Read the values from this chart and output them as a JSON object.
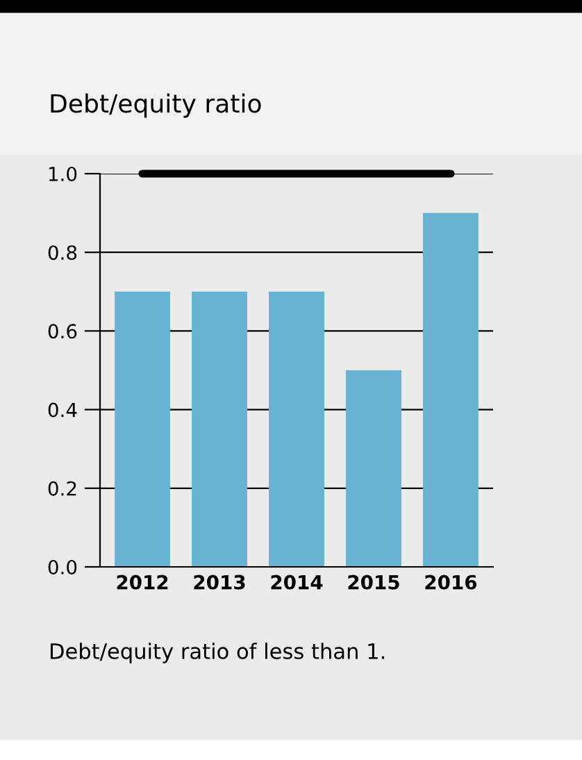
{
  "chart_data": {
    "type": "bar",
    "title": "Debt/equity ratio",
    "categories": [
      "2012",
      "2013",
      "2014",
      "2015",
      "2016"
    ],
    "values": [
      0.7,
      0.7,
      0.7,
      0.5,
      0.9
    ],
    "color": "#67b3d1",
    "ylim": [
      0,
      1.0
    ],
    "yticks": [
      {
        "value": 0,
        "label": "0.0"
      },
      {
        "value": 0.2,
        "label": "0.2"
      },
      {
        "value": 0.4,
        "label": "0.4"
      },
      {
        "value": 0.6,
        "label": "0.6"
      },
      {
        "value": 0.8,
        "label": "0.8"
      },
      {
        "value": 1.0,
        "label": "1.0"
      }
    ],
    "grid": "y",
    "ref_lines": [
      {
        "axis": "y",
        "value": 1.0,
        "color": "#000000"
      }
    ],
    "annotations": [
      "Debt/equity ratio of less than 1."
    ]
  }
}
